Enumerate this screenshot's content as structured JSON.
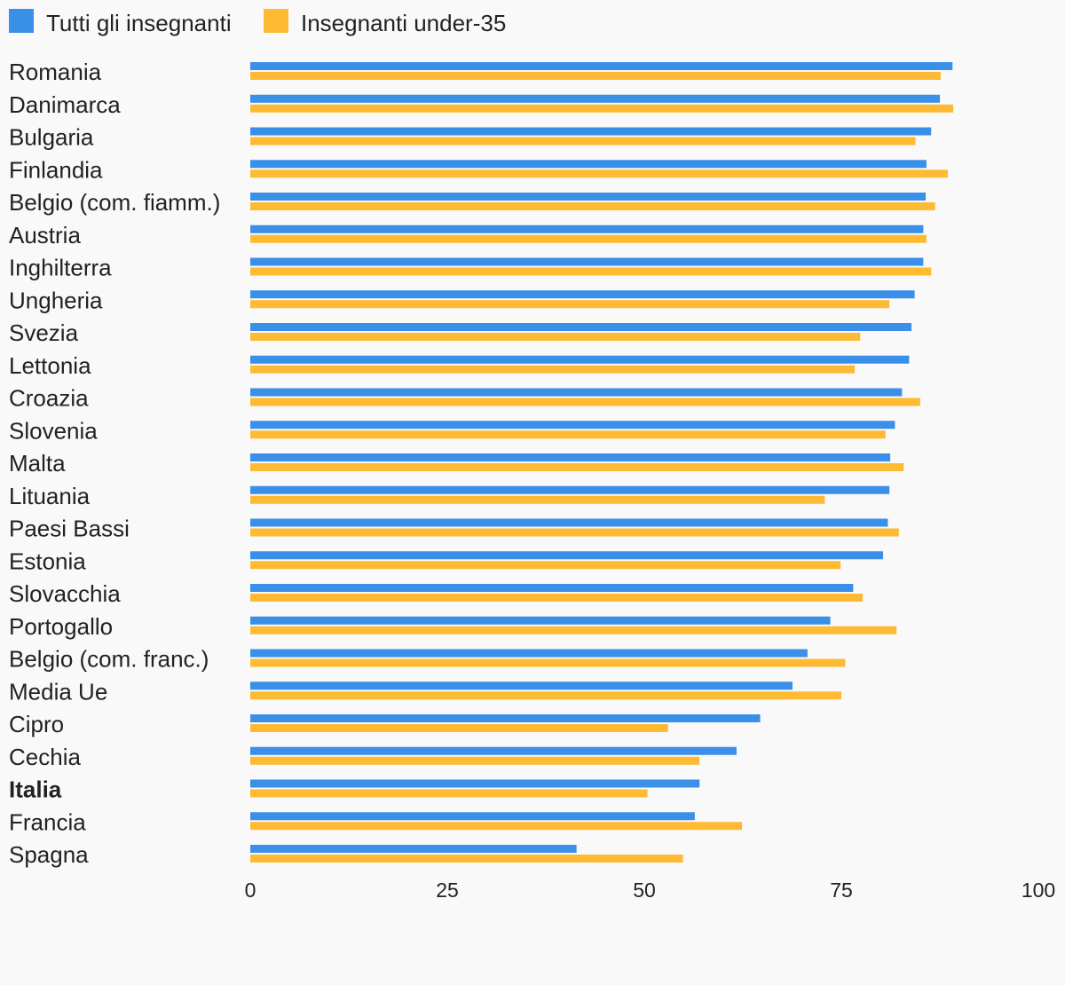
{
  "chart_data": {
    "type": "bar",
    "orientation": "horizontal",
    "categories": [
      "Romania",
      "Danimarca",
      "Bulgaria",
      "Finlandia",
      "Belgio (com. fiamm.)",
      "Austria",
      "Inghilterra",
      "Ungheria",
      "Svezia",
      "Lettonia",
      "Croazia",
      "Slovenia",
      "Malta",
      "Lituania",
      "Paesi Bassi",
      "Estonia",
      "Slovacchia",
      "Portogallo",
      "Belgio (com. franc.)",
      "Media Ue",
      "Cipro",
      "Cechia",
      "Italia",
      "Francia",
      "Spagna"
    ],
    "highlighted_category": "Italia",
    "series": [
      {
        "name": "Tutti gli insegnanti",
        "color": "#3a8fe8",
        "values": [
          89.1,
          87.5,
          86.4,
          85.8,
          85.7,
          85.4,
          85.4,
          84.3,
          83.9,
          83.6,
          82.7,
          81.8,
          81.2,
          81.1,
          80.9,
          80.3,
          76.5,
          73.6,
          70.7,
          68.8,
          64.7,
          61.7,
          57.0,
          56.4,
          41.4
        ]
      },
      {
        "name": "Insegnanti under-35",
        "color": "#ffba33",
        "values": [
          87.6,
          89.2,
          84.4,
          88.5,
          86.9,
          85.8,
          86.4,
          81.1,
          77.4,
          76.7,
          85.0,
          80.6,
          82.9,
          72.9,
          82.3,
          74.9,
          77.7,
          82.0,
          75.5,
          75.0,
          53.0,
          57.0,
          50.4,
          62.4,
          54.9
        ]
      }
    ],
    "xlim": [
      0,
      100
    ],
    "xticks": [
      0,
      25,
      50,
      75,
      100
    ],
    "tick_labels": [
      "0",
      "25",
      "50",
      "75",
      "100"
    ],
    "legend_position": "top-left",
    "grid": false,
    "title": "",
    "xlabel": "",
    "ylabel": ""
  }
}
